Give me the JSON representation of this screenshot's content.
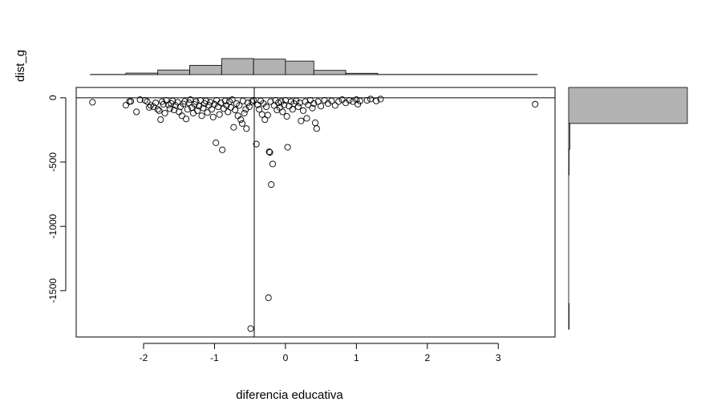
{
  "chart_data": {
    "type": "scatter",
    "title": "",
    "xlabel": "diferencia educativa",
    "ylabel": "dist_g",
    "xlim": [
      -2.95,
      3.8
    ],
    "ylim": [
      -1860,
      80
    ],
    "x_ticks": [
      -2,
      -1,
      0,
      1,
      2,
      3
    ],
    "x_tick_labels": [
      "-2",
      "-1",
      "0",
      "1",
      "2",
      "3"
    ],
    "y_ticks": [
      0,
      -500,
      -1000,
      -1500
    ],
    "y_tick_labels": [
      "0",
      "-500",
      "-1000",
      "-1500"
    ],
    "grid": false,
    "reference_lines": {
      "vertical_x": -0.44,
      "horizontal_y": 0
    },
    "points": [
      [
        -2.72,
        -35
      ],
      [
        -2.25,
        -58
      ],
      [
        -2.2,
        -30
      ],
      [
        -2.18,
        -28
      ],
      [
        -2.1,
        -110
      ],
      [
        -2.05,
        -15
      ],
      [
        -1.98,
        -20
      ],
      [
        -1.95,
        -30
      ],
      [
        -1.92,
        -75
      ],
      [
        -1.9,
        -60
      ],
      [
        -1.86,
        -70
      ],
      [
        -1.83,
        -40
      ],
      [
        -1.8,
        -90
      ],
      [
        -1.78,
        -100
      ],
      [
        -1.76,
        -170
      ],
      [
        -1.74,
        -30
      ],
      [
        -1.72,
        -50
      ],
      [
        -1.7,
        -120
      ],
      [
        -1.68,
        -20
      ],
      [
        -1.65,
        -55
      ],
      [
        -1.63,
        -85
      ],
      [
        -1.61,
        -45
      ],
      [
        -1.59,
        -25
      ],
      [
        -1.57,
        -95
      ],
      [
        -1.55,
        -60
      ],
      [
        -1.52,
        -35
      ],
      [
        -1.5,
        -110
      ],
      [
        -1.48,
        -70
      ],
      [
        -1.46,
        -140
      ],
      [
        -1.44,
        -48
      ],
      [
        -1.42,
        -28
      ],
      [
        -1.4,
        -165
      ],
      [
        -1.38,
        -90
      ],
      [
        -1.36,
        -40
      ],
      [
        -1.34,
        -15
      ],
      [
        -1.32,
        -75
      ],
      [
        -1.3,
        -120
      ],
      [
        -1.28,
        -52
      ],
      [
        -1.26,
        -30
      ],
      [
        -1.24,
        -100
      ],
      [
        -1.22,
        -65
      ],
      [
        -1.2,
        -20
      ],
      [
        -1.18,
        -140
      ],
      [
        -1.16,
        -80
      ],
      [
        -1.14,
        -45
      ],
      [
        -1.12,
        -25
      ],
      [
        -1.1,
        -115
      ],
      [
        -1.08,
        -60
      ],
      [
        -1.06,
        -35
      ],
      [
        -1.04,
        -90
      ],
      [
        -1.02,
        -150
      ],
      [
        -1.0,
        -50
      ],
      [
        -0.98,
        -350
      ],
      [
        -0.97,
        -20
      ],
      [
        -0.95,
        -70
      ],
      [
        -0.93,
        -130
      ],
      [
        -0.91,
        -40
      ],
      [
        -0.89,
        -405
      ],
      [
        -0.87,
        -85
      ],
      [
        -0.85,
        -25
      ],
      [
        -0.83,
        -60
      ],
      [
        -0.81,
        -110
      ],
      [
        -0.79,
        -30
      ],
      [
        -0.77,
        -75
      ],
      [
        -0.75,
        -15
      ],
      [
        -0.73,
        -230
      ],
      [
        -0.71,
        -95
      ],
      [
        -0.69,
        -45
      ],
      [
        -0.67,
        -140
      ],
      [
        -0.65,
        -60
      ],
      [
        -0.63,
        -170
      ],
      [
        -0.61,
        -200
      ],
      [
        -0.6,
        -25
      ],
      [
        -0.58,
        -120
      ],
      [
        -0.56,
        -90
      ],
      [
        -0.55,
        -240
      ],
      [
        -0.53,
        -40
      ],
      [
        -0.51,
        -70
      ],
      [
        -0.49,
        -1795
      ],
      [
        -0.47,
        -30
      ],
      [
        -0.45,
        -20
      ],
      [
        -0.41,
        -360
      ],
      [
        -0.39,
        -55
      ],
      [
        -0.37,
        -90
      ],
      [
        -0.35,
        -25
      ],
      [
        -0.33,
        -130
      ],
      [
        -0.31,
        -45
      ],
      [
        -0.29,
        -170
      ],
      [
        -0.27,
        -70
      ],
      [
        -0.25,
        -135
      ],
      [
        -0.24,
        -1555
      ],
      [
        -0.23,
        -420
      ],
      [
        -0.22,
        -425
      ],
      [
        -0.21,
        -30
      ],
      [
        -0.2,
        -675
      ],
      [
        -0.18,
        -515
      ],
      [
        -0.16,
        -60
      ],
      [
        -0.14,
        -20
      ],
      [
        -0.12,
        -95
      ],
      [
        -0.1,
        -40
      ],
      [
        -0.08,
        -75
      ],
      [
        -0.06,
        -30
      ],
      [
        -0.04,
        -110
      ],
      [
        -0.02,
        -55
      ],
      [
        0.0,
        -20
      ],
      [
        0.02,
        -145
      ],
      [
        0.03,
        -385
      ],
      [
        0.05,
        -65
      ],
      [
        0.08,
        -30
      ],
      [
        0.1,
        -90
      ],
      [
        0.12,
        -45
      ],
      [
        0.15,
        -25
      ],
      [
        0.18,
        -70
      ],
      [
        0.2,
        -40
      ],
      [
        0.22,
        -180
      ],
      [
        0.25,
        -100
      ],
      [
        0.28,
        -30
      ],
      [
        0.3,
        -160
      ],
      [
        0.32,
        -55
      ],
      [
        0.35,
        -20
      ],
      [
        0.38,
        -80
      ],
      [
        0.4,
        -45
      ],
      [
        0.42,
        -195
      ],
      [
        0.44,
        -240
      ],
      [
        0.46,
        -30
      ],
      [
        0.5,
        -65
      ],
      [
        0.55,
        -20
      ],
      [
        0.6,
        -45
      ],
      [
        0.65,
        -25
      ],
      [
        0.7,
        -60
      ],
      [
        0.75,
        -30
      ],
      [
        0.8,
        -15
      ],
      [
        0.85,
        -40
      ],
      [
        0.9,
        -20
      ],
      [
        0.95,
        -30
      ],
      [
        1.0,
        -15
      ],
      [
        1.02,
        -50
      ],
      [
        1.05,
        -25
      ],
      [
        1.15,
        -20
      ],
      [
        1.2,
        -10
      ],
      [
        1.28,
        -25
      ],
      [
        1.34,
        -10
      ],
      [
        3.52,
        -50
      ]
    ],
    "top_histogram": {
      "bin_edges": [
        -2.75,
        -2.25,
        -1.8,
        -1.35,
        -0.9,
        -0.45,
        0.0,
        0.4,
        0.85,
        1.3,
        1.75,
        2.2,
        2.65,
        3.1,
        3.55
      ],
      "heights": [
        1,
        8,
        24,
        48,
        83,
        80,
        70,
        22,
        7,
        1,
        1,
        1,
        1,
        1
      ]
    },
    "right_histogram": {
      "bin_edges": [
        80,
        -200,
        -400,
        -600,
        -800,
        -1000,
        -1200,
        -1400,
        -1600,
        -1800
      ],
      "heights": [
        300,
        3,
        1,
        0,
        0,
        0,
        0,
        0,
        1
      ]
    }
  }
}
